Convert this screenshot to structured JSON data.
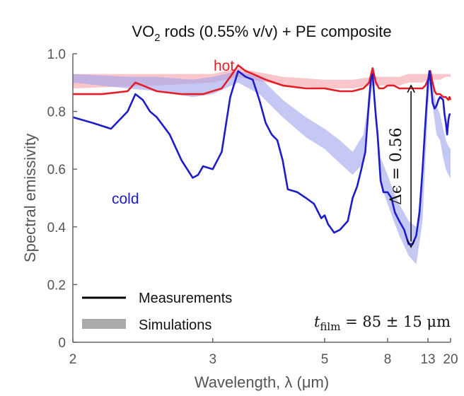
{
  "chart_data": {
    "type": "line",
    "title_parts": {
      "pre": "VO",
      "sub": "2",
      "post": " rods (0.55% v/v) + PE composite"
    },
    "xlabel": "Wavelength, λ (μm)",
    "ylabel": "Spectral emissivity",
    "x_scale": "reciprocal",
    "xlim": [
      2,
      20
    ],
    "ylim": [
      0,
      1.0
    ],
    "x_ticks": [
      2,
      3,
      5,
      8,
      13,
      20
    ],
    "x_tick_labels": [
      "2",
      "3",
      "5",
      "8",
      "13",
      "20"
    ],
    "y_ticks": [
      0,
      0.2,
      0.4,
      0.6,
      0.8,
      1.0
    ],
    "y_tick_labels": [
      "0",
      "0.2",
      "0.4",
      "0.6",
      "0.8",
      "1.0"
    ],
    "grid": false,
    "legend": {
      "placement": "bottom-left",
      "entries": [
        {
          "label": "Measurements",
          "style": "line",
          "color": "#000000"
        },
        {
          "label": "Simulations",
          "style": "band",
          "color": "#aaaaaa"
        }
      ]
    },
    "series": [
      {
        "name": "hot",
        "kind": "measurement",
        "color": "#e41e26",
        "x": [
          2.0,
          2.15,
          2.3,
          2.35,
          2.4,
          2.5,
          2.7,
          2.9,
          3.1,
          3.2,
          3.3,
          3.4,
          3.5,
          3.7,
          4.0,
          4.5,
          5.0,
          5.5,
          6.0,
          6.5,
          6.8,
          7.0,
          7.2,
          7.4,
          7.7,
          8.0,
          8.5,
          9.0,
          9.5,
          10.0,
          10.5,
          11.0,
          11.5,
          12.0,
          12.5,
          13.0,
          13.5,
          14.0,
          14.5,
          15.0,
          15.5,
          16.0,
          17.0,
          18.0,
          19.0,
          19.5,
          20.0
        ],
        "y": [
          0.86,
          0.86,
          0.87,
          0.9,
          0.89,
          0.87,
          0.86,
          0.86,
          0.88,
          0.92,
          0.96,
          0.94,
          0.93,
          0.91,
          0.89,
          0.88,
          0.88,
          0.87,
          0.87,
          0.88,
          0.9,
          0.95,
          0.9,
          0.88,
          0.88,
          0.89,
          0.89,
          0.88,
          0.88,
          0.88,
          0.88,
          0.88,
          0.88,
          0.88,
          0.89,
          0.91,
          0.94,
          0.9,
          0.87,
          0.86,
          0.86,
          0.86,
          0.85,
          0.85,
          0.84,
          0.85,
          0.84
        ]
      },
      {
        "name": "cold",
        "kind": "measurement",
        "color": "#1c1cc8",
        "x": [
          2.0,
          2.1,
          2.2,
          2.3,
          2.35,
          2.4,
          2.45,
          2.5,
          2.6,
          2.7,
          2.8,
          2.85,
          2.9,
          3.0,
          3.1,
          3.2,
          3.3,
          3.4,
          3.5,
          3.6,
          3.7,
          3.8,
          3.9,
          4.0,
          4.1,
          4.3,
          4.5,
          4.7,
          4.9,
          5.0,
          5.1,
          5.3,
          5.5,
          5.8,
          6.0,
          6.2,
          6.4,
          6.6,
          6.8,
          6.9,
          7.0,
          7.1,
          7.2,
          7.3,
          7.5,
          7.7,
          8.0,
          8.3,
          8.6,
          9.0,
          9.5,
          10.0,
          10.5,
          11.0,
          11.5,
          12.0,
          12.5,
          13.0,
          13.3,
          13.6,
          14.0,
          14.5,
          15.0,
          15.5,
          16.0,
          17.0,
          17.5,
          18.0,
          18.5,
          19.0,
          19.5,
          20.0
        ],
        "y": [
          0.78,
          0.76,
          0.74,
          0.8,
          0.86,
          0.84,
          0.8,
          0.78,
          0.72,
          0.63,
          0.57,
          0.58,
          0.61,
          0.6,
          0.66,
          0.85,
          0.94,
          0.92,
          0.91,
          0.84,
          0.76,
          0.72,
          0.7,
          0.63,
          0.53,
          0.52,
          0.5,
          0.48,
          0.43,
          0.44,
          0.41,
          0.38,
          0.39,
          0.42,
          0.5,
          0.54,
          0.6,
          0.66,
          0.84,
          0.91,
          0.93,
          0.85,
          0.78,
          0.72,
          0.56,
          0.52,
          0.52,
          0.5,
          0.45,
          0.42,
          0.39,
          0.34,
          0.34,
          0.37,
          0.45,
          0.6,
          0.76,
          0.9,
          0.94,
          0.9,
          0.83,
          0.81,
          0.82,
          0.84,
          0.85,
          0.84,
          0.79,
          0.76,
          0.72,
          0.77,
          0.79,
          0.79
        ]
      },
      {
        "name": "hot",
        "kind": "simulation",
        "color": "#f4a0a8",
        "x": [
          2.0,
          2.5,
          3.0,
          3.3,
          3.5,
          4.0,
          5.0,
          6.0,
          7.0,
          8.0,
          9.0,
          10.0,
          11.0,
          12.0,
          13.0,
          14.0,
          16.0,
          18.0,
          20.0
        ],
        "y_low": [
          0.88,
          0.89,
          0.9,
          0.92,
          0.91,
          0.89,
          0.88,
          0.88,
          0.89,
          0.89,
          0.89,
          0.9,
          0.9,
          0.9,
          0.91,
          0.91,
          0.91,
          0.92,
          0.92
        ],
        "y_high": [
          0.93,
          0.93,
          0.93,
          0.95,
          0.94,
          0.92,
          0.91,
          0.91,
          0.92,
          0.92,
          0.92,
          0.93,
          0.93,
          0.93,
          0.93,
          0.93,
          0.93,
          0.93,
          0.93
        ]
      },
      {
        "name": "cold",
        "kind": "simulation",
        "color": "#a0a4ec",
        "x": [
          2.0,
          2.3,
          2.5,
          2.8,
          3.0,
          3.3,
          3.6,
          4.0,
          4.5,
          5.0,
          5.5,
          6.0,
          6.5,
          7.0,
          7.5,
          8.0,
          8.5,
          9.0,
          10.0,
          11.0,
          12.0,
          13.0,
          13.5,
          14.0,
          15.0,
          16.0,
          17.0,
          18.0,
          19.0,
          20.0
        ],
        "y_low": [
          0.9,
          0.88,
          0.87,
          0.85,
          0.86,
          0.9,
          0.86,
          0.78,
          0.71,
          0.67,
          0.62,
          0.58,
          0.62,
          0.9,
          0.55,
          0.48,
          0.42,
          0.37,
          0.3,
          0.27,
          0.42,
          0.82,
          0.9,
          0.82,
          0.72,
          0.7,
          0.64,
          0.6,
          0.58,
          0.57
        ],
        "y_high": [
          0.93,
          0.92,
          0.92,
          0.91,
          0.92,
          0.94,
          0.92,
          0.84,
          0.78,
          0.74,
          0.7,
          0.66,
          0.72,
          0.93,
          0.64,
          0.58,
          0.52,
          0.48,
          0.42,
          0.4,
          0.56,
          0.9,
          0.95,
          0.89,
          0.82,
          0.79,
          0.74,
          0.7,
          0.68,
          0.67
        ]
      }
    ],
    "annotations": {
      "hot_label": "hot",
      "cold_label": "cold",
      "delta_label": "Δϵ = 0.56",
      "delta_arrow": {
        "x": 10.3,
        "y_from": 0.33,
        "y_to": 0.89
      },
      "film_label_var": "t",
      "film_label_sub": "film",
      "film_label_value": " = 85 ± 15 μm"
    }
  }
}
